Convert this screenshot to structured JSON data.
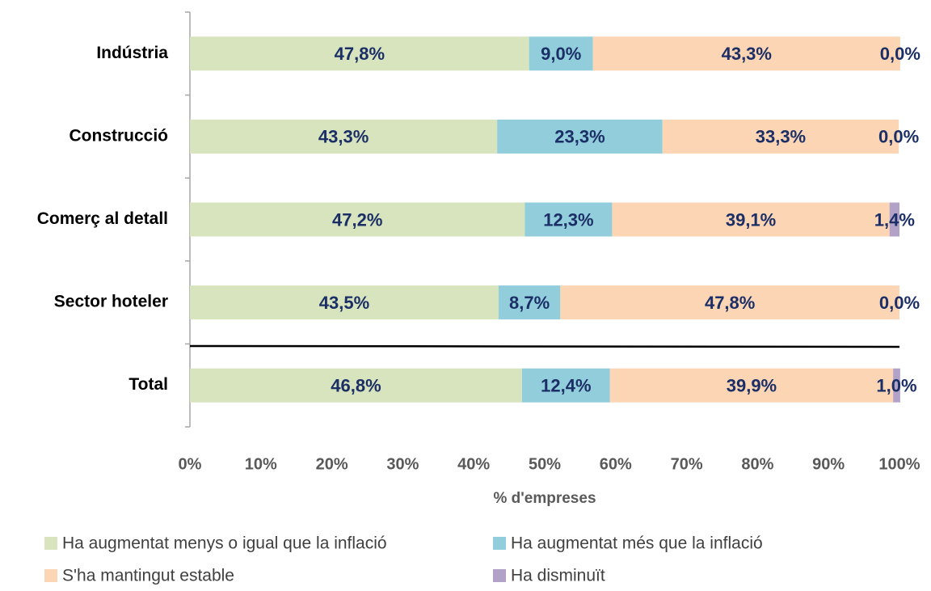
{
  "chart_data": {
    "type": "stacked_barh",
    "categories": [
      "Indústria",
      "Construcció",
      "Comerç al detall",
      "Sector hoteler",
      "Total"
    ],
    "series": [
      {
        "name": "Ha augmentat menys o igual que la inflació",
        "color": "#d7e4bd",
        "values": [
          47.8,
          43.3,
          47.2,
          43.5,
          46.8
        ],
        "value_labels": [
          "47,8%",
          "43,3%",
          "47,2%",
          "43,5%",
          "46,8%"
        ]
      },
      {
        "name": "Ha augmentat més que la inflació",
        "color": "#92cddc",
        "values": [
          9.0,
          23.3,
          12.3,
          8.7,
          12.4
        ],
        "value_labels": [
          "9,0%",
          "23,3%",
          "12,3%",
          "8,7%",
          "12,4%"
        ]
      },
      {
        "name": "S'ha mantingut estable",
        "color": "#fcd5b5",
        "values": [
          43.3,
          33.3,
          39.1,
          47.8,
          39.9
        ],
        "value_labels": [
          "43,3%",
          "33,3%",
          "39,1%",
          "47,8%",
          "39,9%"
        ]
      },
      {
        "name": "Ha disminuït",
        "color": "#b3a2c7",
        "values": [
          0.0,
          0.0,
          1.4,
          0.0,
          1.0
        ],
        "value_labels": [
          "0,0%",
          "0,0%",
          "1,4%",
          "0,0%",
          "1,0%"
        ]
      }
    ],
    "x_label": "% d'empreses",
    "xlim": [
      0,
      100
    ],
    "xticks": [
      {
        "value": 0,
        "label": "0%"
      },
      {
        "value": 10,
        "label": "10%"
      },
      {
        "value": 20,
        "label": "20%"
      },
      {
        "value": 30,
        "label": "30%"
      },
      {
        "value": 40,
        "label": "40%"
      },
      {
        "value": 50,
        "label": "50%"
      },
      {
        "value": 60,
        "label": "60%"
      },
      {
        "value": 70,
        "label": "70%"
      },
      {
        "value": 80,
        "label": "80%"
      },
      {
        "value": 90,
        "label": "90%"
      },
      {
        "value": 100,
        "label": "100%"
      }
    ],
    "grid": false,
    "legend": "bottom"
  }
}
